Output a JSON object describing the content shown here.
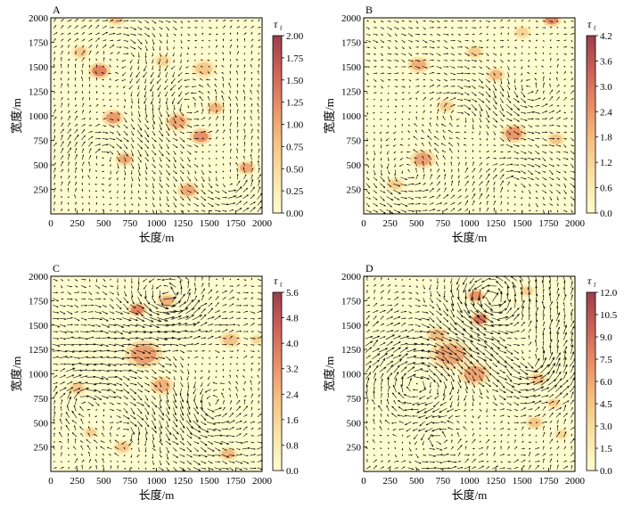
{
  "colors": {
    "cmap": [
      "#fffdd0",
      "#fbe3a6",
      "#f5c283",
      "#e89066",
      "#cc6258",
      "#9b3e4b"
    ],
    "arrow": "#000000",
    "axis": "#000000"
  },
  "chart_data": [
    {
      "type": "quiver",
      "panel_label": "A",
      "xlabel": "长度/m",
      "ylabel": "宽度/m",
      "xlim": [
        0,
        2000
      ],
      "ylim": [
        0,
        2000
      ],
      "xticks": [
        0,
        250,
        500,
        750,
        1000,
        1250,
        1500,
        1750,
        2000
      ],
      "yticks": [
        250,
        500,
        750,
        1000,
        1250,
        1500,
        1750,
        2000
      ],
      "colorbar": {
        "label_main": "τ",
        "label_sub": "f",
        "range": [
          0,
          2.0
        ],
        "ticks": [
          "0.00",
          "0.25",
          "0.50",
          "0.75",
          "1.00",
          "1.25",
          "1.50",
          "1.75",
          "2.00"
        ]
      },
      "hotspots": [
        {
          "x": 460,
          "y": 1460,
          "r": 70,
          "v": 1.3
        },
        {
          "x": 590,
          "y": 980,
          "r": 70,
          "v": 1.1
        },
        {
          "x": 700,
          "y": 560,
          "r": 60,
          "v": 1.0
        },
        {
          "x": 1200,
          "y": 940,
          "r": 80,
          "v": 1.0
        },
        {
          "x": 1420,
          "y": 790,
          "r": 70,
          "v": 1.2
        },
        {
          "x": 1560,
          "y": 1080,
          "r": 60,
          "v": 0.9
        },
        {
          "x": 1850,
          "y": 470,
          "r": 60,
          "v": 1.0
        },
        {
          "x": 620,
          "y": 1990,
          "r": 60,
          "v": 0.8
        },
        {
          "x": 1300,
          "y": 240,
          "r": 70,
          "v": 1.0
        },
        {
          "x": 1450,
          "y": 1480,
          "r": 80,
          "v": 0.7
        },
        {
          "x": 280,
          "y": 1650,
          "r": 60,
          "v": 0.7
        },
        {
          "x": 1060,
          "y": 1560,
          "r": 60,
          "v": 0.6
        }
      ],
      "vortices": [
        {
          "x": 1300,
          "y": 1100,
          "s": 1.0
        },
        {
          "x": 500,
          "y": 600,
          "s": -1.0
        },
        {
          "x": 1700,
          "y": 300,
          "s": 1.0
        },
        {
          "x": 700,
          "y": 1600,
          "s": -0.8
        }
      ],
      "base_flow": [
        0.4,
        0.1
      ],
      "amplitude": 1.0
    },
    {
      "type": "quiver",
      "panel_label": "B",
      "xlabel": "长度/m",
      "ylabel": "宽度/m",
      "xlim": [
        0,
        2000
      ],
      "ylim": [
        0,
        2000
      ],
      "xticks": [
        0,
        250,
        500,
        750,
        1000,
        1250,
        1500,
        1750,
        2000
      ],
      "yticks": [
        250,
        500,
        750,
        1000,
        1250,
        1500,
        1750,
        2000
      ],
      "colorbar": {
        "label_main": "τ",
        "label_sub": "f",
        "range": [
          0,
          4.2
        ],
        "ticks": [
          "0.0",
          "0.6",
          "1.2",
          "1.8",
          "2.4",
          "3.0",
          "3.6",
          "4.2"
        ]
      },
      "hotspots": [
        {
          "x": 520,
          "y": 1520,
          "r": 70,
          "v": 2.0
        },
        {
          "x": 560,
          "y": 560,
          "r": 80,
          "v": 2.2
        },
        {
          "x": 1420,
          "y": 820,
          "r": 80,
          "v": 2.4
        },
        {
          "x": 1250,
          "y": 1420,
          "r": 60,
          "v": 1.8
        },
        {
          "x": 1780,
          "y": 1980,
          "r": 60,
          "v": 2.6
        },
        {
          "x": 1050,
          "y": 1650,
          "r": 60,
          "v": 1.4
        },
        {
          "x": 780,
          "y": 1100,
          "r": 60,
          "v": 1.4
        },
        {
          "x": 1820,
          "y": 760,
          "r": 60,
          "v": 1.6
        },
        {
          "x": 300,
          "y": 300,
          "r": 60,
          "v": 1.4
        },
        {
          "x": 1500,
          "y": 1850,
          "r": 60,
          "v": 1.2
        }
      ],
      "vortices": [
        {
          "x": 900,
          "y": 1000,
          "s": -1.0
        },
        {
          "x": 1550,
          "y": 1250,
          "s": 1.0
        },
        {
          "x": 400,
          "y": 400,
          "s": 0.8
        },
        {
          "x": 1400,
          "y": 300,
          "s": -0.8
        }
      ],
      "base_flow": [
        0.5,
        -0.1
      ],
      "amplitude": 1.1
    },
    {
      "type": "quiver",
      "panel_label": "C",
      "xlabel": "长度/m",
      "ylabel": "宽度/m",
      "xlim": [
        0,
        2000
      ],
      "ylim": [
        0,
        2000
      ],
      "xticks": [
        0,
        250,
        500,
        750,
        1000,
        1250,
        1500,
        1750,
        2000
      ],
      "yticks": [
        250,
        500,
        750,
        1000,
        1250,
        1500,
        1750,
        2000
      ],
      "colorbar": {
        "label_main": "τ",
        "label_sub": "f",
        "range": [
          0,
          5.6
        ],
        "ticks": [
          "0.0",
          "0.8",
          "1.6",
          "2.4",
          "3.2",
          "4.0",
          "4.8",
          "5.6"
        ]
      },
      "hotspots": [
        {
          "x": 820,
          "y": 1660,
          "r": 60,
          "v": 3.6
        },
        {
          "x": 880,
          "y": 1200,
          "r": 120,
          "v": 3.0
        },
        {
          "x": 1100,
          "y": 1750,
          "r": 60,
          "v": 2.6
        },
        {
          "x": 1050,
          "y": 880,
          "r": 80,
          "v": 2.6
        },
        {
          "x": 1700,
          "y": 1350,
          "r": 70,
          "v": 2.2
        },
        {
          "x": 1680,
          "y": 180,
          "r": 60,
          "v": 2.4
        },
        {
          "x": 250,
          "y": 850,
          "r": 60,
          "v": 2.0
        },
        {
          "x": 680,
          "y": 250,
          "r": 60,
          "v": 2.0
        },
        {
          "x": 380,
          "y": 400,
          "r": 50,
          "v": 1.8
        },
        {
          "x": 1950,
          "y": 1350,
          "r": 50,
          "v": 1.6
        }
      ],
      "vortices": [
        {
          "x": 1100,
          "y": 1780,
          "s": 1.4
        },
        {
          "x": 300,
          "y": 700,
          "s": -1.0
        },
        {
          "x": 1500,
          "y": 700,
          "s": 1.0
        },
        {
          "x": 700,
          "y": 400,
          "s": -0.8
        }
      ],
      "base_flow": [
        0.6,
        0.0
      ],
      "amplitude": 1.4
    },
    {
      "type": "quiver",
      "panel_label": "D",
      "xlabel": "长度/m",
      "ylabel": "宽度/m",
      "xlim": [
        0,
        2000
      ],
      "ylim": [
        0,
        2000
      ],
      "xticks": [
        0,
        250,
        500,
        750,
        1000,
        1250,
        1500,
        1750,
        2000
      ],
      "yticks": [
        250,
        500,
        750,
        1000,
        1250,
        1500,
        1750,
        2000
      ],
      "colorbar": {
        "label_main": "τ",
        "label_sub": "f",
        "range": [
          0,
          12.0
        ],
        "ticks": [
          "0.0",
          "1.5",
          "3.0",
          "4.5",
          "6.0",
          "7.5",
          "9.0",
          "10.5",
          "12.0"
        ]
      },
      "hotspots": [
        {
          "x": 1100,
          "y": 1560,
          "r": 60,
          "v": 8.5
        },
        {
          "x": 1060,
          "y": 1800,
          "r": 60,
          "v": 7.0
        },
        {
          "x": 820,
          "y": 1200,
          "r": 130,
          "v": 6.0
        },
        {
          "x": 1050,
          "y": 1000,
          "r": 100,
          "v": 6.2
        },
        {
          "x": 700,
          "y": 1400,
          "r": 70,
          "v": 5.0
        },
        {
          "x": 1650,
          "y": 950,
          "r": 60,
          "v": 4.8
        },
        {
          "x": 1620,
          "y": 500,
          "r": 60,
          "v": 4.5
        },
        {
          "x": 1800,
          "y": 700,
          "r": 50,
          "v": 4.0
        },
        {
          "x": 1550,
          "y": 1850,
          "r": 50,
          "v": 4.0
        },
        {
          "x": 1870,
          "y": 380,
          "r": 50,
          "v": 3.2
        }
      ],
      "vortices": [
        {
          "x": 1200,
          "y": 1780,
          "s": 1.4
        },
        {
          "x": 500,
          "y": 900,
          "s": -1.0
        },
        {
          "x": 1600,
          "y": 1100,
          "s": 1.0
        },
        {
          "x": 700,
          "y": 350,
          "s": 0.8
        }
      ],
      "base_flow": [
        0.5,
        0.2
      ],
      "amplitude": 1.5
    }
  ]
}
